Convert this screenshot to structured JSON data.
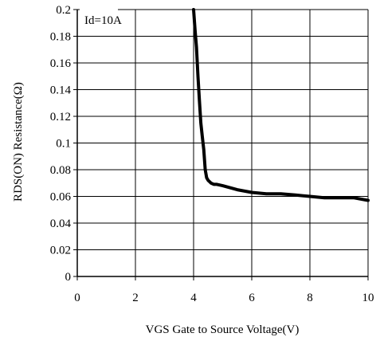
{
  "chart_data": {
    "type": "line",
    "xlabel": "VGS Gate to Source Voltage(V)",
    "ylabel": "RDS(ON) Resistance(Ω)",
    "annotation": "Id=10A",
    "xlim": [
      0,
      10
    ],
    "ylim": [
      0,
      0.2
    ],
    "x_ticks": [
      "0",
      "2",
      "4",
      "6",
      "8",
      "10"
    ],
    "y_ticks": [
      "0",
      "0.02",
      "0.04",
      "0.06",
      "0.08",
      "0.1",
      "0.12",
      "0.14",
      "0.16",
      "0.18",
      "0.2"
    ],
    "grid": true,
    "series": [
      {
        "color": "#000000",
        "x": [
          4.0,
          4.05,
          4.1,
          4.15,
          4.2,
          4.25,
          4.3,
          4.35,
          4.4,
          4.45,
          4.5,
          4.55,
          4.6,
          4.7,
          4.8,
          5.0,
          5.5,
          6.0,
          6.5,
          7.0,
          7.5,
          8.0,
          8.5,
          9.0,
          9.5,
          10.0
        ],
        "y": [
          0.2,
          0.185,
          0.172,
          0.15,
          0.132,
          0.115,
          0.105,
          0.095,
          0.08,
          0.074,
          0.072,
          0.071,
          0.07,
          0.069,
          0.069,
          0.068,
          0.065,
          0.063,
          0.062,
          0.062,
          0.061,
          0.06,
          0.059,
          0.059,
          0.059,
          0.057
        ]
      }
    ]
  }
}
